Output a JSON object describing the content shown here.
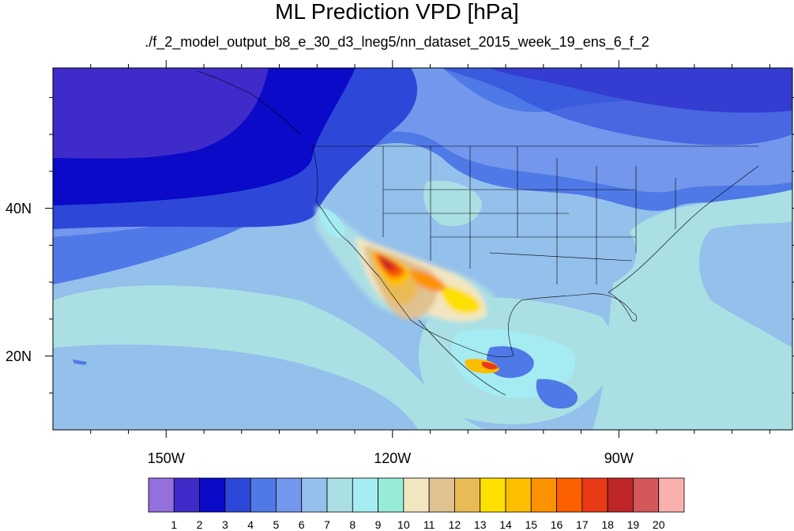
{
  "title": "ML Prediction VPD [hPa]",
  "subtitle": "./f_2_model_output_b8_e_30_d3_lneg5/nn_dataset_2015_week_19_ens_6_f_2",
  "variable_units": "hPa",
  "map": {
    "projection": "cylindrical equidistant",
    "lon_range": [
      -165,
      -67
    ],
    "lat_range": [
      10,
      59
    ],
    "lon_ticks": [
      {
        "value": -150,
        "label": "150W"
      },
      {
        "value": -120,
        "label": "120W"
      },
      {
        "value": -90,
        "label": "90W"
      }
    ],
    "lat_ticks": [
      {
        "value": 40,
        "label": "40N"
      },
      {
        "value": 20,
        "label": "20N"
      }
    ],
    "overlays": [
      "coastlines",
      "us-state-boundaries",
      "country-boundaries"
    ]
  },
  "legend": {
    "levels": [
      "1",
      "2",
      "3",
      "4",
      "5",
      "6",
      "7",
      "8",
      "9",
      "10",
      "11",
      "12",
      "13",
      "14",
      "15",
      "16",
      "17",
      "18",
      "19",
      "20"
    ],
    "colors": [
      "#9370db",
      "#3f2bc9",
      "#0a0ac8",
      "#2d48d8",
      "#4f79e6",
      "#7297ec",
      "#94c0ec",
      "#aadfe4",
      "#a5ecf2",
      "#96ecd8",
      "#f2e6c0",
      "#dfc192",
      "#e9bb55",
      "#fde000",
      "#fdbe00",
      "#fd9200",
      "#fd6000",
      "#e93a16",
      "#bf2627",
      "#d2585a",
      "#fbb0b0"
    ]
  }
}
